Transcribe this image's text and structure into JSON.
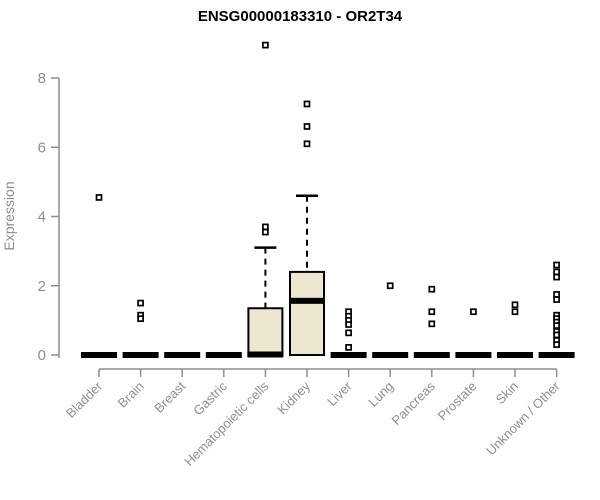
{
  "chart_data": {
    "type": "boxplot",
    "title": "ENSG00000183310 - OR2T34",
    "ylabel": "Expression",
    "xlabel": "",
    "ylim": [
      0,
      9.2
    ],
    "yticks": [
      0,
      2,
      4,
      6,
      8
    ],
    "grid": false,
    "legend": "none",
    "categories": [
      "Bladder",
      "Brain",
      "Breast",
      "Gastric",
      "Hematopoietic cells",
      "Kidney",
      "Liver",
      "Lung",
      "Pancreas",
      "Prostate",
      "Skin",
      "Unknown / Other"
    ],
    "boxes": [
      {
        "category": "Bladder",
        "whisker_low": 0,
        "q1": 0,
        "median": 0,
        "q3": 0,
        "whisker_high": 0,
        "outliers": [
          4.55
        ]
      },
      {
        "category": "Brain",
        "whisker_low": 0,
        "q1": 0,
        "median": 0,
        "q3": 0,
        "whisker_high": 0,
        "outliers": [
          1.5,
          1.15,
          1.05
        ]
      },
      {
        "category": "Breast",
        "whisker_low": 0,
        "q1": 0,
        "median": 0,
        "q3": 0,
        "whisker_high": 0,
        "outliers": []
      },
      {
        "category": "Gastric",
        "whisker_low": 0,
        "q1": 0,
        "median": 0,
        "q3": 0,
        "whisker_high": 0,
        "outliers": []
      },
      {
        "category": "Hematopoietic cells",
        "whisker_low": 0,
        "q1": 0,
        "median": 0,
        "q3": 1.35,
        "whisker_high": 3.1,
        "outliers": [
          8.95,
          3.7,
          3.55
        ]
      },
      {
        "category": "Kidney",
        "whisker_low": 0,
        "q1": 0,
        "median": 1.55,
        "q3": 2.4,
        "whisker_high": 4.6,
        "outliers": [
          7.25,
          6.6,
          6.1
        ]
      },
      {
        "category": "Liver",
        "whisker_low": 0,
        "q1": 0,
        "median": 0,
        "q3": 0,
        "whisker_high": 0,
        "outliers": [
          1.25,
          1.12,
          1.0,
          0.88,
          0.64,
          0.22
        ]
      },
      {
        "category": "Lung",
        "whisker_low": 0,
        "q1": 0,
        "median": 0,
        "q3": 0,
        "whisker_high": 0,
        "outliers": [
          2.0
        ]
      },
      {
        "category": "Pancreas",
        "whisker_low": 0,
        "q1": 0,
        "median": 0,
        "q3": 0,
        "whisker_high": 0,
        "outliers": [
          1.9,
          1.25,
          0.9
        ]
      },
      {
        "category": "Prostate",
        "whisker_low": 0,
        "q1": 0,
        "median": 0,
        "q3": 0,
        "whisker_high": 0,
        "outliers": [
          1.25
        ]
      },
      {
        "category": "Skin",
        "whisker_low": 0,
        "q1": 0,
        "median": 0,
        "q3": 0,
        "whisker_high": 0,
        "outliers": [
          1.45,
          1.25
        ]
      },
      {
        "category": "Unknown / Other",
        "whisker_low": 0,
        "q1": 0,
        "median": 0,
        "q3": 0,
        "whisker_high": 0,
        "outliers": [
          2.6,
          2.4,
          2.25,
          1.75,
          1.6,
          1.15,
          1.05,
          0.95,
          0.85,
          0.68,
          0.58,
          0.42,
          0.3
        ]
      }
    ],
    "colors": {
      "box_fill": "#EDE7D1",
      "box_stroke": "#000000",
      "median": "#000000",
      "outlier_stroke": "#000000",
      "outlier_fill": "#ffffff",
      "axis": "#8e8e8e",
      "axis_text": "#8e8e8e",
      "title": "#000000",
      "background": "#ffffff"
    }
  }
}
